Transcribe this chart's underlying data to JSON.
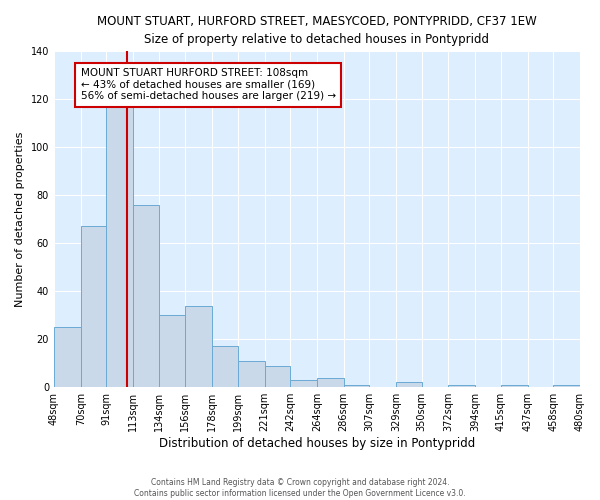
{
  "title": "MOUNT STUART, HURFORD STREET, MAESYCOED, PONTYPRIDD, CF37 1EW",
  "subtitle": "Size of property relative to detached houses in Pontypridd",
  "xlabel": "Distribution of detached houses by size in Pontypridd",
  "ylabel": "Number of detached properties",
  "bar_edges": [
    48,
    70,
    91,
    113,
    134,
    156,
    178,
    199,
    221,
    242,
    264,
    286,
    307,
    329,
    350,
    372,
    394,
    415,
    437,
    458,
    480
  ],
  "bar_heights": [
    25,
    67,
    118,
    76,
    30,
    34,
    17,
    11,
    9,
    3,
    4,
    1,
    0,
    2,
    0,
    1,
    0,
    1,
    0,
    1
  ],
  "bar_color": "#c9d9ea",
  "bar_edge_color": "#6aaad4",
  "ylim": [
    0,
    140
  ],
  "yticks": [
    0,
    20,
    40,
    60,
    80,
    100,
    120,
    140
  ],
  "property_size": 108,
  "vline_color": "#cc0000",
  "annotation_text": "MOUNT STUART HURFORD STREET: 108sqm\n← 43% of detached houses are smaller (169)\n56% of semi-detached houses are larger (219) →",
  "annotation_box_color": "#ffffff",
  "annotation_border_color": "#cc0000",
  "footer_line1": "Contains HM Land Registry data © Crown copyright and database right 2024.",
  "footer_line2": "Contains public sector information licensed under the Open Government Licence v3.0.",
  "fig_background_color": "#ffffff",
  "plot_background_color": "#ddeeff",
  "grid_color": "#ffffff",
  "tick_labels": [
    "48sqm",
    "70sqm",
    "91sqm",
    "113sqm",
    "134sqm",
    "156sqm",
    "178sqm",
    "199sqm",
    "221sqm",
    "242sqm",
    "264sqm",
    "286sqm",
    "307sqm",
    "329sqm",
    "350sqm",
    "372sqm",
    "394sqm",
    "415sqm",
    "437sqm",
    "458sqm",
    "480sqm"
  ],
  "title_fontsize": 8.5,
  "subtitle_fontsize": 8.5,
  "xlabel_fontsize": 8.5,
  "ylabel_fontsize": 8,
  "tick_fontsize": 7,
  "annotation_fontsize": 7.5,
  "footer_fontsize": 5.5
}
